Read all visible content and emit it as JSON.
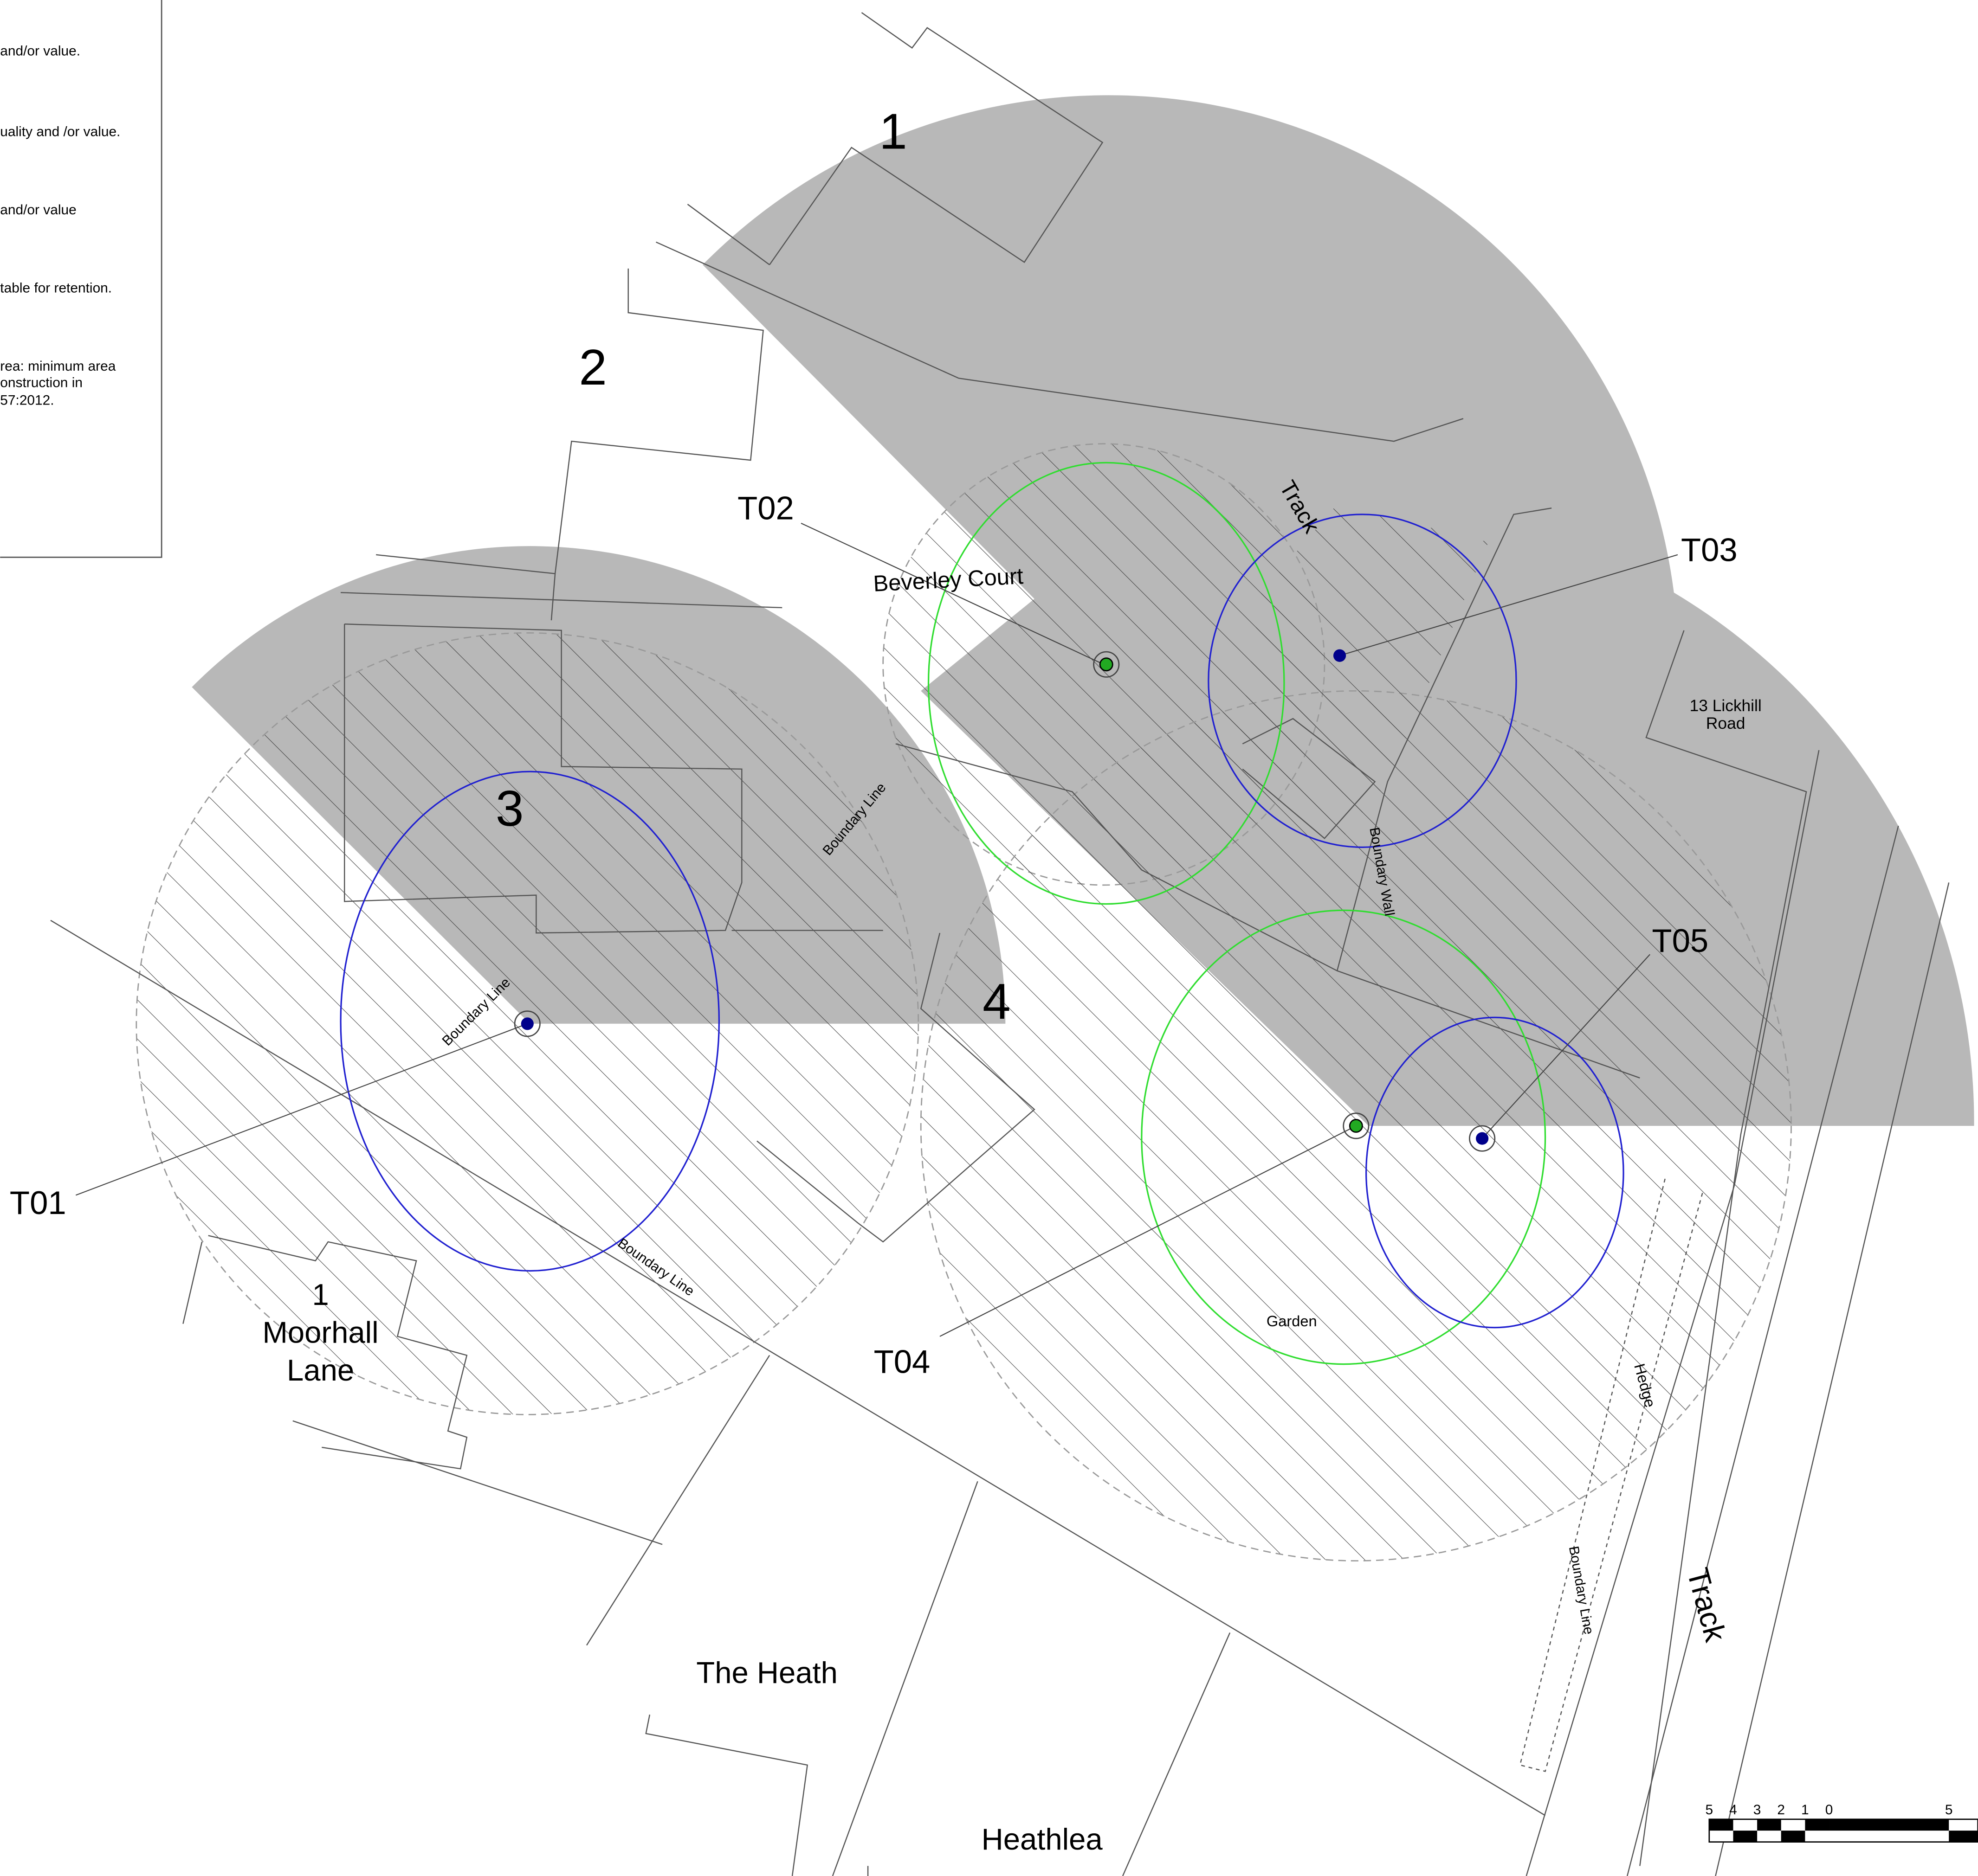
{
  "legend": {
    "lines": [
      "and/or value.",
      "uality and /or value.",
      "and/or value",
      "table for retention.",
      "rea: minimum area",
      "onstruction in",
      "57:2012."
    ]
  },
  "plots": [
    "1",
    "2",
    "3",
    "4"
  ],
  "trees": [
    "T01",
    "T02",
    "T03",
    "T04",
    "T05"
  ],
  "places": {
    "beverley_court": "Beverley Court",
    "lickhill": [
      "13 Lickhill",
      "Road"
    ],
    "moorhall": [
      "1",
      "Moorhall",
      "Lane"
    ],
    "the_heath": "The Heath",
    "heathlea": "Heathlea"
  },
  "annotations": {
    "track_top": "Track",
    "track_right": "Track",
    "boundary_line": "Boundary Line",
    "boundary_wall": "Boundary Wall",
    "hedge": "Hedge",
    "garden": "Garden"
  },
  "scale_bar": {
    "labels": [
      "5",
      "4",
      "3",
      "2",
      "1",
      "0",
      "5"
    ]
  }
}
